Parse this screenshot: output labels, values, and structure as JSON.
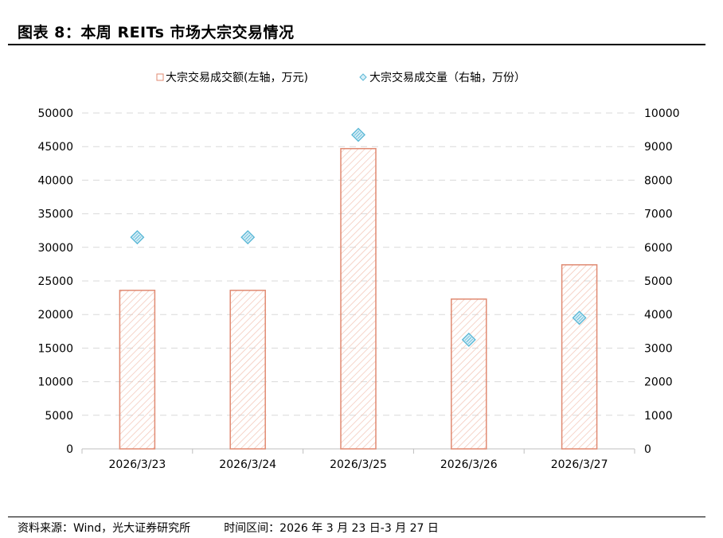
{
  "title": "图表 8：本周 REITs 市场大宗交易情况",
  "footer": {
    "source": "资料来源：Wind，光大证券研究所",
    "period": "时间区间：2026 年 3 月 23 日-3 月 27 日"
  },
  "colors": {
    "bar_stroke": "#e08a72",
    "bar_hatch": "#f2c3b3",
    "marker_stroke": "#5bb8d6",
    "marker_fill": "#d8eef7",
    "grid": "#d9d9d9"
  },
  "chart_data": {
    "type": "bar",
    "categories": [
      "2026/3/23",
      "2026/3/24",
      "2026/3/25",
      "2026/3/26",
      "2026/3/27"
    ],
    "series": [
      {
        "name": "大宗交易成交额(左轴，万元)",
        "type": "bar",
        "axis": "left",
        "values": [
          23600,
          23600,
          44700,
          22300,
          27400
        ]
      },
      {
        "name": "大宗交易成交量（右轴，万份）",
        "type": "scatter",
        "axis": "right",
        "values": [
          6300,
          6300,
          9350,
          3250,
          3900
        ]
      }
    ],
    "ylim_left": [
      0,
      50000
    ],
    "ylim_right": [
      0,
      10000
    ],
    "yticks_left": [
      "0",
      "5000",
      "10000",
      "15000",
      "20000",
      "25000",
      "30000",
      "35000",
      "40000",
      "45000",
      "50000"
    ],
    "yticks_right": [
      "0",
      "1000",
      "2000",
      "3000",
      "4000",
      "5000",
      "6000",
      "7000",
      "8000",
      "9000",
      "10000"
    ],
    "grid": true,
    "legend": "top-center"
  }
}
